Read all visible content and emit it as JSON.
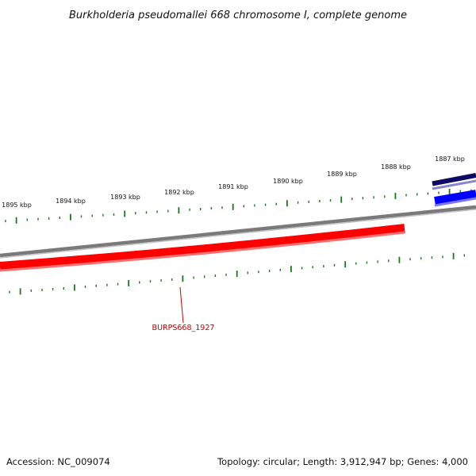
{
  "title": "Burkholderia pseudomallei 668 chromosome I, complete genome",
  "footer": {
    "accession": "Accession: NC_009074",
    "summary": "Topology: circular; Length: 3,912,947 bp; Genes: 4,000"
  },
  "kbp_labels": [
    "1895 kbp",
    "1894 kbp",
    "1893 kbp",
    "1892 kbp",
    "1891 kbp",
    "1890 kbp",
    "1889 kbp",
    "1888 kbp",
    "1887 kbp"
  ],
  "genes": [
    {
      "name": "BURPS668_1927",
      "strand": "reverse",
      "color": "#ff0000"
    }
  ],
  "colors": {
    "tick": "#1a7a1a",
    "backbone": "#808080",
    "reverse_gene": "#ff0000",
    "forward_gene": "#0000ff",
    "navy_gene": "#000080",
    "gene_label": "#cc0000"
  }
}
